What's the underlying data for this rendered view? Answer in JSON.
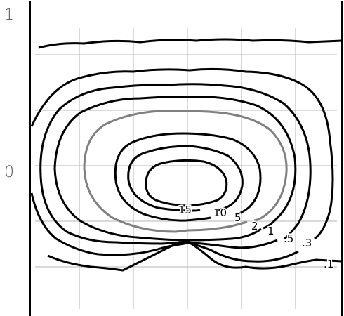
{
  "chart_data": {
    "type": "contour",
    "title": "",
    "xlabel": "",
    "ylabel": "",
    "y_ticks": [
      "1",
      "0"
    ],
    "grid": true,
    "contour_levels": [
      "15",
      "10",
      "5",
      "2",
      "1",
      ".5",
      ".3",
      ".1"
    ],
    "highlighted_level": "2",
    "colors": {
      "contour": "#000000",
      "highlight": "#808080",
      "grid": "#b4b4b4",
      "frame": "#000000",
      "tick_text": "#555555"
    }
  }
}
